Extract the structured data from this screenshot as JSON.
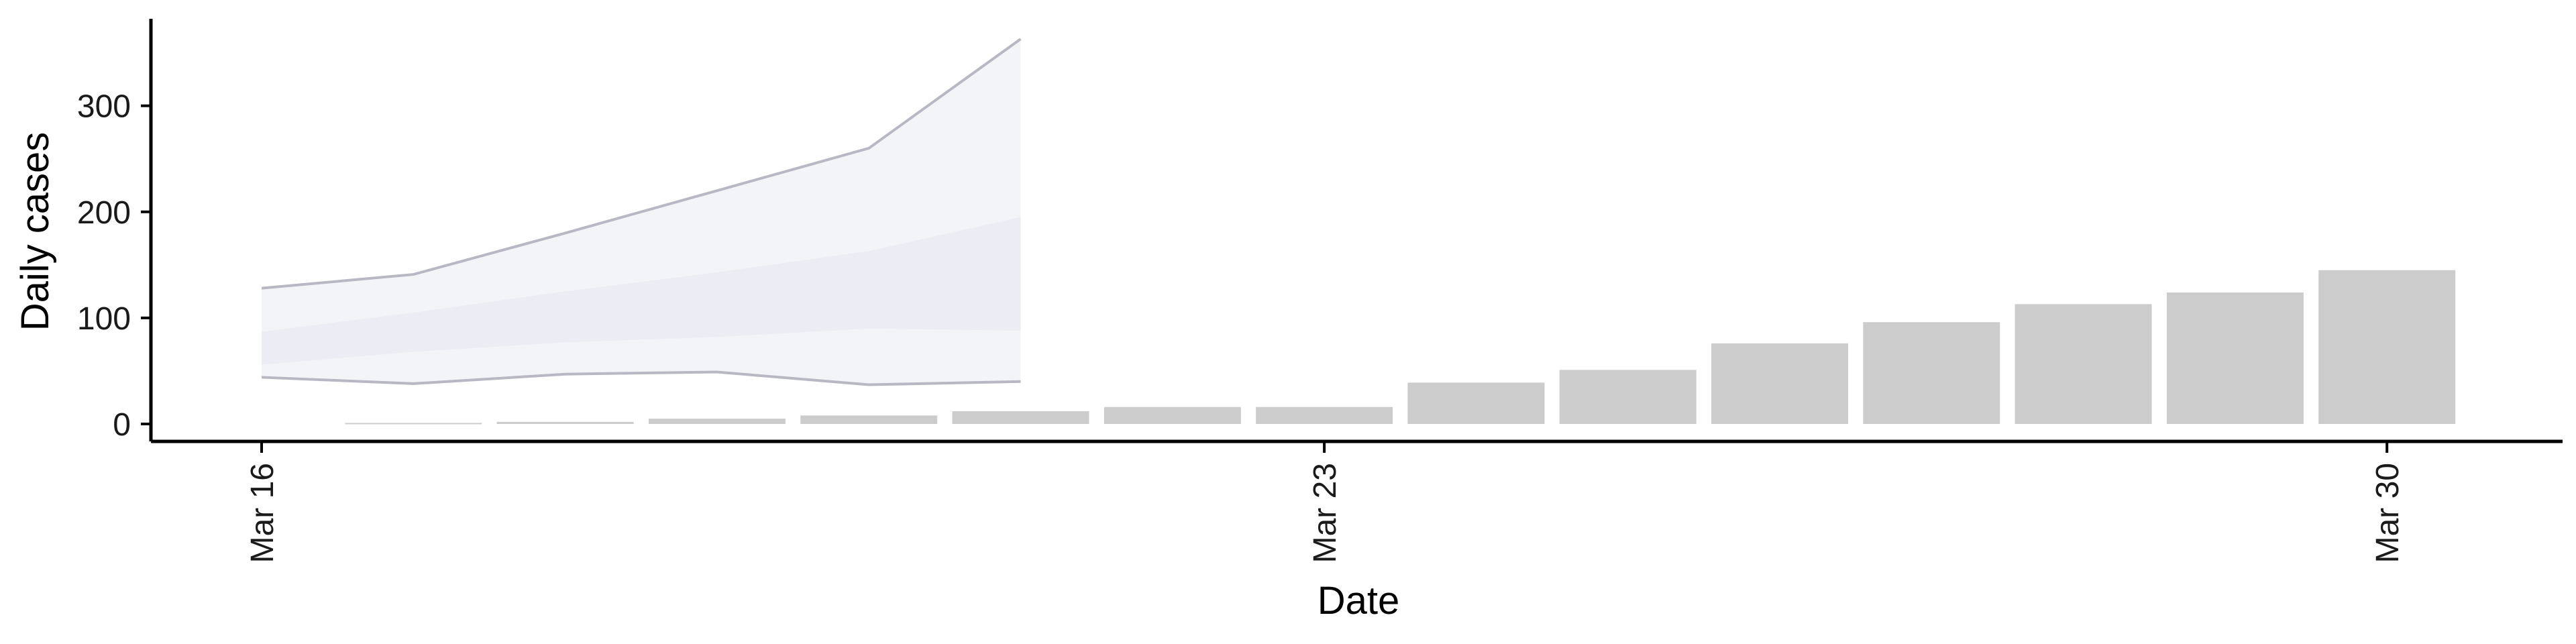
{
  "chart_data": {
    "type": "bar",
    "xlabel": "Date",
    "ylabel": "Daily cases",
    "ylim": [
      -17,
      380
    ],
    "yticks": [
      0,
      100,
      200,
      300
    ],
    "xticks": [
      "2020-03-16",
      "2020-03-23",
      "2020-03-30"
    ],
    "xtick_labels": [
      "Mar 16",
      "Mar 23",
      "Mar 30"
    ],
    "bar_color": "#cccccc",
    "bars": {
      "dates": [
        "2020-03-17",
        "2020-03-18",
        "2020-03-19",
        "2020-03-20",
        "2020-03-21",
        "2020-03-22",
        "2020-03-23",
        "2020-03-24",
        "2020-03-25",
        "2020-03-26",
        "2020-03-27",
        "2020-03-28",
        "2020-03-29",
        "2020-03-30"
      ],
      "values": [
        1,
        2,
        5,
        8,
        12,
        16,
        16,
        39,
        51,
        76,
        96,
        113,
        124,
        145
      ]
    },
    "forecast_band": {
      "fill_color": "#e4e6f0",
      "line_color": "#b8b8c4",
      "dates": [
        "2020-03-16",
        "2020-03-17",
        "2020-03-18",
        "2020-03-19",
        "2020-03-20",
        "2020-03-21"
      ],
      "outer_lower": [
        44,
        38,
        47,
        49,
        37,
        40
      ],
      "outer_upper": [
        128,
        141,
        180,
        220,
        260,
        363
      ],
      "inner_lower": [
        56,
        68,
        77,
        82,
        90,
        88
      ],
      "inner_upper": [
        87,
        105,
        125,
        143,
        163,
        195
      ]
    },
    "grid": false,
    "legend": "none"
  }
}
